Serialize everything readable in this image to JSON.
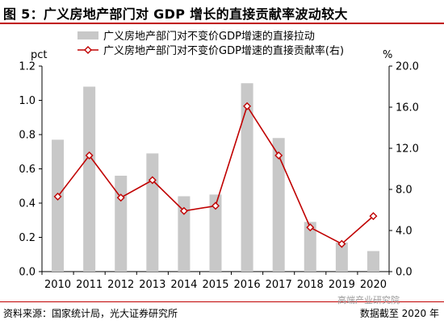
{
  "title": "图 5：广义房地产部门对 GDP 增长的直接贡献率波动较大",
  "footer": {
    "source": "资料来源：国家统计局，光大证券研究所",
    "note": "数据截至 2020 年",
    "watermark": "高端产业研究院"
  },
  "chart_data": {
    "type": "bar+line",
    "categories": [
      "2010",
      "2011",
      "2012",
      "2013",
      "2014",
      "2015",
      "2016",
      "2017",
      "2018",
      "2019",
      "2020"
    ],
    "left_axis": {
      "unit": "pct",
      "ylim": [
        0,
        1.2
      ],
      "ticks": [
        "0.0",
        "0.2",
        "0.4",
        "0.6",
        "0.8",
        "1.0",
        "1.2"
      ]
    },
    "right_axis": {
      "unit": "%",
      "ylim": [
        0,
        20
      ],
      "ticks": [
        "0.0",
        "4.0",
        "8.0",
        "12.0",
        "16.0",
        "20.0"
      ]
    },
    "series": [
      {
        "name": "广义房地产部门对不变价GDP增速的直接拉动",
        "type": "bar",
        "axis": "left",
        "color": "#c8c8c8",
        "values": [
          0.77,
          1.08,
          0.56,
          0.69,
          0.44,
          0.45,
          1.1,
          0.78,
          0.29,
          0.17,
          0.12
        ]
      },
      {
        "name": "广义房地产部门对不变价GDP增速的直接贡献率(右)",
        "type": "line",
        "axis": "right",
        "color": "#c00000",
        "values": [
          7.3,
          11.3,
          7.2,
          8.9,
          5.9,
          6.4,
          16.1,
          11.3,
          4.3,
          2.7,
          5.4
        ]
      }
    ],
    "grid": false,
    "legend": "top"
  }
}
